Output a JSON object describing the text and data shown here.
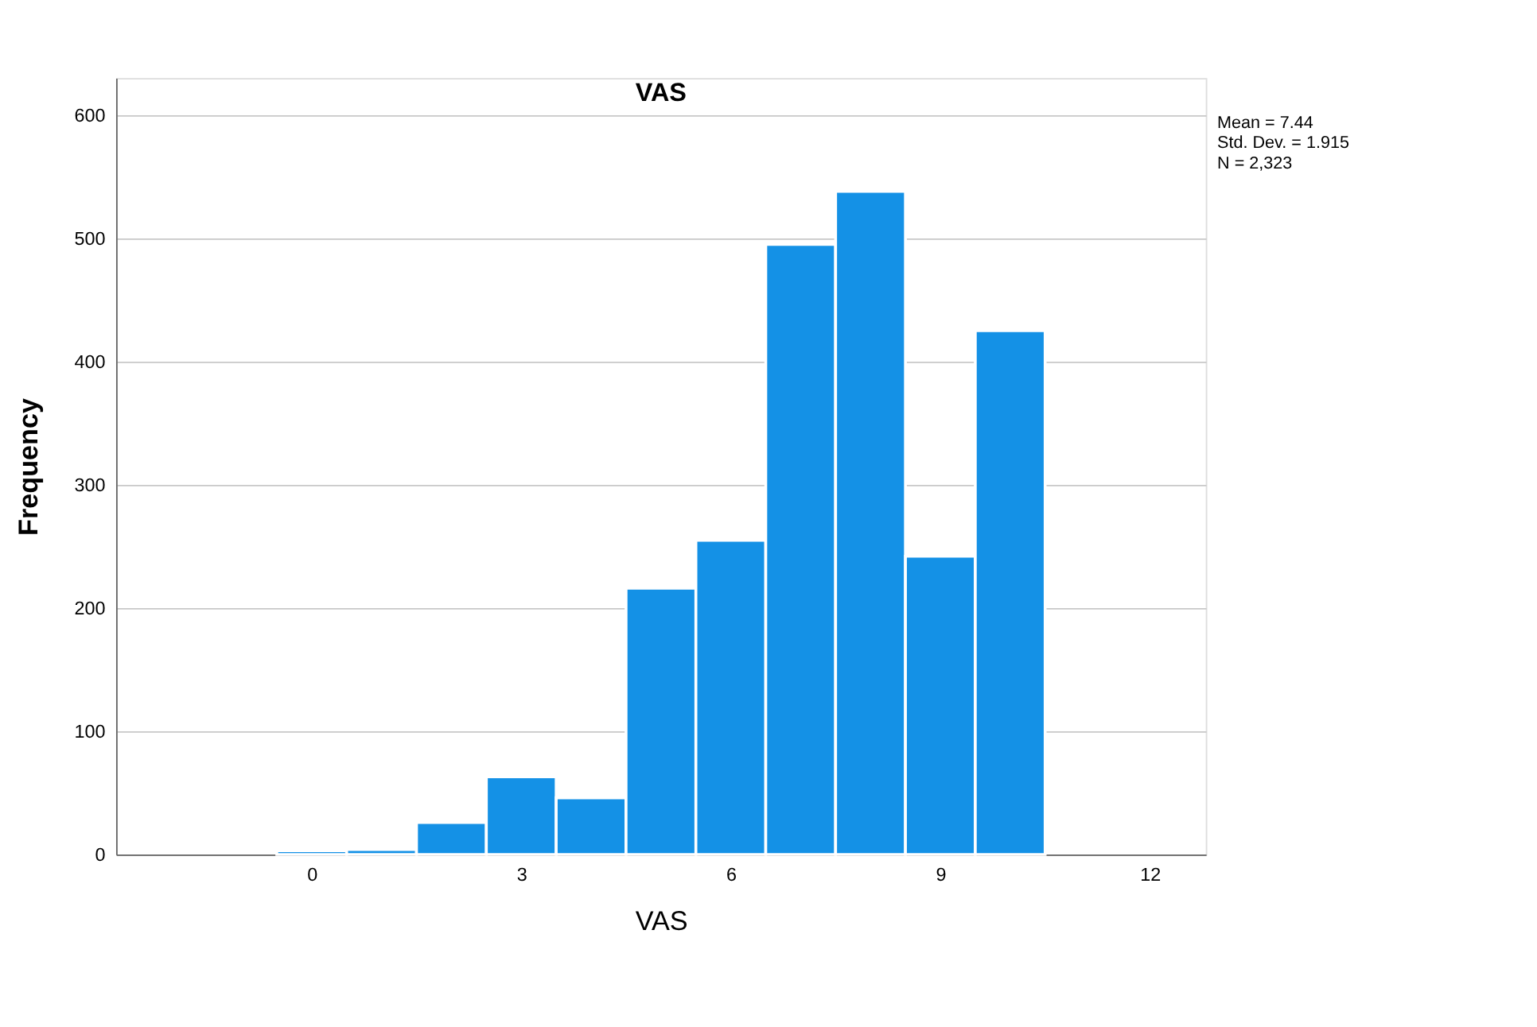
{
  "chart_data": {
    "type": "histogram",
    "title": "VAS",
    "xlabel": "VAS",
    "ylabel": "Frequency",
    "bins": [
      -0.5,
      0.5,
      1.5,
      2.5,
      3.5,
      4.5,
      5.5,
      6.5,
      7.5,
      8.5,
      9.5,
      10.5
    ],
    "values": [
      3,
      4,
      26,
      63,
      46,
      216,
      255,
      495,
      538,
      242,
      425
    ],
    "color": "#1491e6",
    "xlim": [
      -2.8,
      12.8
    ],
    "xticks": [
      0,
      3,
      6,
      9,
      12
    ],
    "ylim": [
      0,
      630
    ],
    "yticks": [
      0,
      100,
      200,
      300,
      400,
      500,
      600
    ],
    "grid": "y",
    "annotations": [
      "Mean = 7.44",
      "Std. Dev. = 1.915",
      "N = 2,323"
    ]
  }
}
